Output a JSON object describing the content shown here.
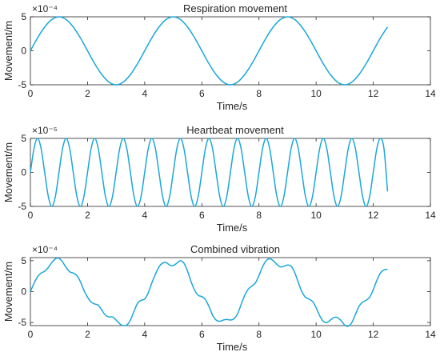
{
  "chart_data": [
    {
      "type": "line",
      "title": "Respiration movement",
      "xlabel": "Time/s",
      "ylabel": "Movement/m",
      "exponent_label": "×10⁻⁴",
      "xlim": [
        0,
        14
      ],
      "ylim": [
        -5,
        5
      ],
      "xticks": [
        0,
        2,
        4,
        6,
        8,
        10,
        12,
        14
      ],
      "yticks": [
        -5,
        0,
        5
      ],
      "color": "#1aa7d9",
      "series": [
        {
          "x": [
            0,
            0.25,
            0.5,
            0.75,
            1.0,
            1.25,
            1.5,
            1.75,
            2.0,
            2.25,
            2.5,
            2.75,
            3.0,
            3.25,
            3.5,
            3.75,
            4.0,
            4.25,
            4.5,
            4.75,
            5.0,
            5.25,
            5.5,
            5.75,
            6.0,
            6.25,
            6.5,
            6.75,
            7.0,
            7.25,
            7.5,
            7.75,
            8.0,
            8.25,
            8.5,
            8.75,
            9.0,
            9.25,
            9.5,
            9.75,
            10.0,
            10.25,
            10.5,
            10.75,
            11.0,
            11.25,
            11.5,
            11.75,
            12.0,
            12.25,
            12.5
          ],
          "y": [
            0,
            1.9,
            3.5,
            4.6,
            5.0,
            4.6,
            3.5,
            1.9,
            0,
            -1.9,
            -3.5,
            -4.6,
            -5.0,
            -4.6,
            -3.5,
            -1.9,
            0,
            1.9,
            3.5,
            4.6,
            5.0,
            4.6,
            3.5,
            1.9,
            0,
            -1.9,
            -3.5,
            -4.6,
            -5.0,
            -4.6,
            -3.5,
            -1.9,
            0,
            1.9,
            3.5,
            4.6,
            5.0,
            4.6,
            3.5,
            1.9,
            0,
            -1.9,
            -3.5,
            -4.6,
            -5.0,
            -4.6,
            -3.5,
            -1.9,
            0,
            1.9,
            3.5
          ]
        }
      ]
    },
    {
      "type": "line",
      "title": "Heartbeat movement",
      "xlabel": "Time/s",
      "ylabel": "Movement/m",
      "exponent_label": "×10⁻⁵",
      "xlim": [
        0,
        14
      ],
      "ylim": [
        -5,
        5
      ],
      "xticks": [
        0,
        2,
        4,
        6,
        8,
        10,
        12,
        14
      ],
      "yticks": [
        -5,
        0,
        5
      ],
      "color": "#1aa7d9",
      "series": [
        {
          "x": [
            0,
            0.125,
            0.25,
            0.375,
            0.5,
            0.625,
            0.75,
            0.875,
            1.0,
            1.125,
            1.25,
            1.375,
            1.5,
            1.625,
            1.75,
            1.875,
            2.0,
            2.125,
            2.25,
            2.375,
            2.5,
            2.625,
            2.75,
            2.875,
            3.0,
            3.125,
            3.25,
            3.375,
            3.5,
            3.625,
            3.75,
            3.875,
            4.0,
            4.125,
            4.25,
            4.375,
            4.5,
            4.625,
            4.75,
            4.875,
            5.0,
            5.125,
            5.25,
            5.375,
            5.5,
            5.625,
            5.75,
            5.875,
            6.0,
            6.125,
            6.25,
            6.375,
            6.5,
            6.625,
            6.75,
            6.875,
            7.0,
            7.125,
            7.25,
            7.375,
            7.5,
            7.625,
            7.75,
            7.875,
            8.0,
            8.125,
            8.25,
            8.375,
            8.5,
            8.625,
            8.75,
            8.875,
            9.0,
            9.125,
            9.25,
            9.375,
            9.5,
            9.625,
            9.75,
            9.875,
            10.0,
            10.125,
            10.25,
            10.375,
            10.5,
            10.625,
            10.75,
            10.875,
            11.0,
            11.125,
            11.25,
            11.375,
            11.5,
            11.625,
            11.75,
            11.875,
            12.0,
            12.125,
            12.25,
            12.375,
            12.5
          ],
          "y": [
            0,
            3.5,
            5.0,
            3.5,
            0,
            -3.5,
            -5.0,
            -3.5,
            0,
            3.5,
            5.0,
            3.5,
            0,
            -3.5,
            -5.0,
            -3.5,
            0,
            3.5,
            5.0,
            3.5,
            0,
            -3.5,
            -5.0,
            -3.5,
            0,
            3.5,
            5.0,
            3.5,
            0,
            -3.5,
            -5.0,
            -3.5,
            0,
            3.5,
            5.0,
            3.5,
            0,
            -3.5,
            -5.0,
            -3.5,
            0,
            3.5,
            5.0,
            3.5,
            0,
            -3.5,
            -5.0,
            -3.5,
            0,
            3.5,
            5.0,
            3.5,
            0,
            -3.5,
            -5.0,
            -3.5,
            0,
            3.5,
            5.0,
            3.5,
            0,
            -3.5,
            -5.0,
            -3.5,
            0,
            3.5,
            5.0,
            3.5,
            0,
            -3.5,
            -5.0,
            -3.5,
            0,
            3.5,
            5.0,
            3.5,
            0,
            -3.5,
            -5.0,
            -3.5,
            0,
            3.5,
            5.0,
            3.5,
            0,
            -3.5,
            -5.0,
            -3.5,
            0,
            3.5,
            5.0,
            3.5,
            0,
            -3.5,
            -5.0,
            -3.5,
            0,
            3.5,
            5.0,
            3.5,
            -2.8
          ]
        }
      ]
    },
    {
      "type": "line",
      "title": "Combined vibration",
      "xlabel": "Time/s",
      "ylabel": "Movement/m",
      "exponent_label": "×10⁻⁴",
      "xlim": [
        0,
        14
      ],
      "ylim": [
        -5.5,
        5.5
      ],
      "xticks": [
        0,
        2,
        4,
        6,
        8,
        10,
        12,
        14
      ],
      "yticks": [
        -5,
        0,
        5
      ],
      "color": "#1aa7d9",
      "series": [
        {
          "x": [
            0,
            0.125,
            0.25,
            0.375,
            0.5,
            0.625,
            0.75,
            0.875,
            1.0,
            1.125,
            1.25,
            1.375,
            1.5,
            1.625,
            1.75,
            1.875,
            2.0,
            2.125,
            2.25,
            2.375,
            2.5,
            2.625,
            2.75,
            2.875,
            3.0,
            3.125,
            3.25,
            3.375,
            3.5,
            3.625,
            3.75,
            3.875,
            4.0,
            4.125,
            4.25,
            4.375,
            4.5,
            4.625,
            4.75,
            4.875,
            5.0,
            5.125,
            5.25,
            5.375,
            5.5,
            5.625,
            5.75,
            5.875,
            6.0,
            6.125,
            6.25,
            6.375,
            6.5,
            6.625,
            6.75,
            6.875,
            7.0,
            7.125,
            7.25,
            7.375,
            7.5,
            7.625,
            7.75,
            7.875,
            8.0,
            8.125,
            8.25,
            8.375,
            8.5,
            8.625,
            8.75,
            8.875,
            9.0,
            9.125,
            9.25,
            9.375,
            9.5,
            9.625,
            9.75,
            9.875,
            10.0,
            10.125,
            10.25,
            10.375,
            10.5,
            10.625,
            10.75,
            10.875,
            11.0,
            11.125,
            11.25,
            11.375,
            11.5,
            11.625,
            11.75,
            11.875,
            12.0,
            12.125,
            12.25,
            12.375,
            12.5
          ],
          "y": [
            0,
            1.3,
            2.4,
            3.0,
            3.3,
            3.9,
            4.7,
            5.3,
            5.4,
            4.8,
            3.9,
            3.2,
            3.0,
            2.6,
            1.6,
            0.2,
            -0.9,
            -1.7,
            -2.0,
            -2.2,
            -3.0,
            -3.8,
            -4.1,
            -4.1,
            -4.6,
            -5.2,
            -5.5,
            -5.4,
            -4.6,
            -3.2,
            -1.9,
            -1.4,
            -1.2,
            -0.2,
            1.4,
            2.8,
            4.0,
            4.6,
            4.7,
            4.3,
            4.2,
            4.6,
            5.0,
            4.6,
            3.3,
            1.6,
            0.2,
            -0.6,
            -0.8,
            -1.3,
            -2.4,
            -3.8,
            -4.6,
            -4.8,
            -4.6,
            -4.5,
            -4.6,
            -4.4,
            -3.6,
            -2.1,
            -0.6,
            0.4,
            0.9,
            1.4,
            2.6,
            4.0,
            5.0,
            5.3,
            5.0,
            4.4,
            4.0,
            4.1,
            4.3,
            4.1,
            3.1,
            1.5,
            0,
            -0.9,
            -1.2,
            -1.6,
            -2.6,
            -3.9,
            -4.8,
            -5.0,
            -4.6,
            -4.2,
            -4.2,
            -4.7,
            -5.4,
            -5.6,
            -5.0,
            -3.7,
            -2.4,
            -1.7,
            -1.4,
            -0.9,
            0.3,
            1.8,
            3.0,
            3.5,
            3.6
          ]
        }
      ]
    }
  ]
}
